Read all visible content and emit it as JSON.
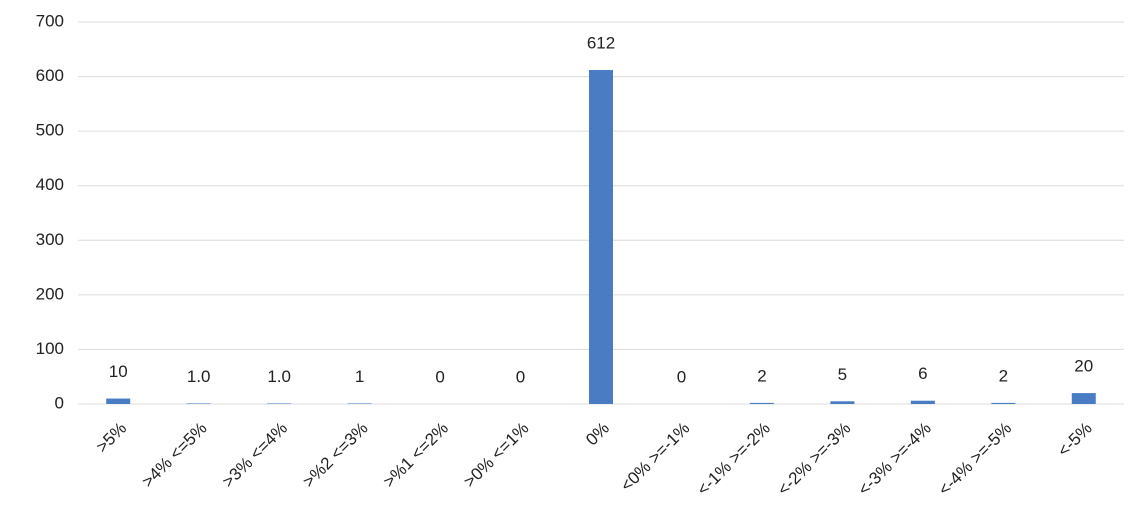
{
  "chart_data": {
    "type": "bar",
    "categories": [
      ">5%",
      ">4% <=5%",
      ">3% <=4%",
      ">%2 <=3%",
      ">%1 <=2%",
      ">0% <=1%",
      "0%",
      "<0% >=-1%",
      "<-1% >=-2%",
      "<-2% >=-3%",
      "<-3% >=-4%",
      "<-4% >=-5%",
      "<-5%"
    ],
    "values": [
      10,
      1,
      1,
      1,
      0,
      0,
      612,
      0,
      2,
      5,
      6,
      2,
      20
    ],
    "value_labels": [
      "10",
      "1.0",
      "1.0",
      "1",
      "0",
      "0",
      "612",
      "0",
      "2",
      "5",
      "6",
      "2",
      "20"
    ],
    "color": "#4a7cc4",
    "ylim": [
      0,
      700
    ],
    "yticks": [
      0,
      100,
      200,
      300,
      400,
      500,
      600,
      700
    ],
    "grid": true
  }
}
